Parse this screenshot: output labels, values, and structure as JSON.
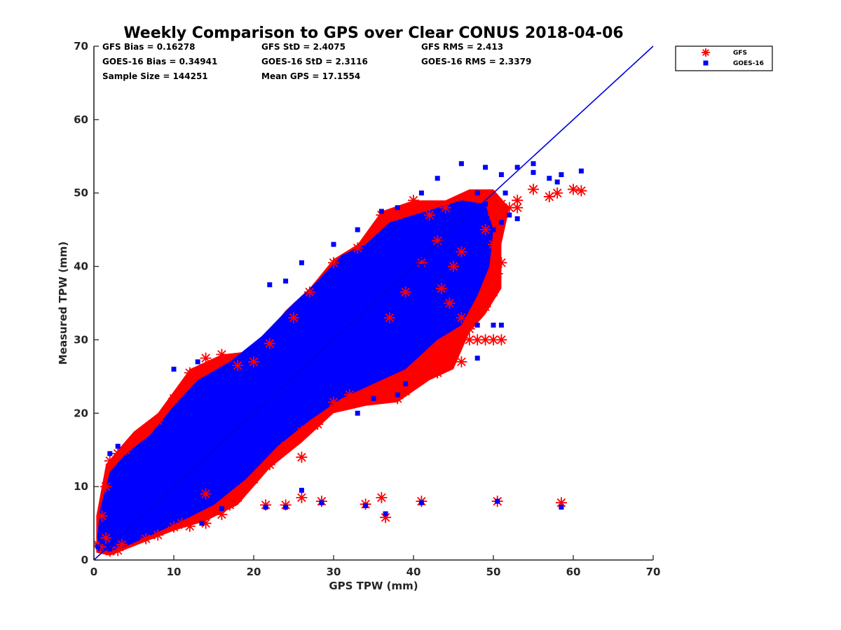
{
  "chart_data": {
    "type": "scatter",
    "title": "Weekly Comparison to GPS over Clear CONUS 2018-04-06",
    "xlabel": "GPS TPW (mm)",
    "ylabel": "Measured TPW (mm)",
    "xlim": [
      0,
      70
    ],
    "ylim": [
      0,
      70
    ],
    "xticks": [
      "0",
      "10",
      "20",
      "30",
      "40",
      "50",
      "60",
      "70"
    ],
    "yticks": [
      "0",
      "10",
      "20",
      "30",
      "40",
      "50",
      "60",
      "70"
    ],
    "grid": false,
    "legend_position": "outside-top-right",
    "one_to_one_line": {
      "from": [
        0,
        0
      ],
      "to": [
        70,
        70
      ],
      "color": "#0000dd"
    },
    "statistics": [
      [
        "GFS Bias = 0.16278",
        "GFS StD = 2.4075",
        "GFS RMS = 2.413"
      ],
      [
        "GOES-16 Bias = 0.34941",
        "GOES-16 StD = 2.3116",
        "GOES-16 RMS = 2.3379"
      ],
      [
        "Sample Size = 144251",
        "Mean GPS = 17.1554"
      ]
    ],
    "sample_size": 144251,
    "series": [
      {
        "name": "GFS",
        "marker": "asterisk",
        "color": "#ff0000",
        "points": [
          [
            0.4,
            2.2
          ],
          [
            0.8,
            1.8
          ],
          [
            1.5,
            3.0
          ],
          [
            2.0,
            1.2
          ],
          [
            3.0,
            1.3
          ],
          [
            3.5,
            2.1
          ],
          [
            6.5,
            2.9
          ],
          [
            8.0,
            3.4
          ],
          [
            10.0,
            4.5
          ],
          [
            11.0,
            5.0
          ],
          [
            12.0,
            4.6
          ],
          [
            14.0,
            5.0
          ],
          [
            16.0,
            6.2
          ],
          [
            17.0,
            7.5
          ],
          [
            18.0,
            8.5
          ],
          [
            20.0,
            11.0
          ],
          [
            22.0,
            13.0
          ],
          [
            24.0,
            15.5
          ],
          [
            26.0,
            17.5
          ],
          [
            28.0,
            18.5
          ],
          [
            30.0,
            21.5
          ],
          [
            32.0,
            22.5
          ],
          [
            34.0,
            22.0
          ],
          [
            36.0,
            22.5
          ],
          [
            38.0,
            22.0
          ],
          [
            39.0,
            23.0
          ],
          [
            40.0,
            25.5
          ],
          [
            41.0,
            25.5
          ],
          [
            42.0,
            25.8
          ],
          [
            43.0,
            25.5
          ],
          [
            44.0,
            27.0
          ],
          [
            45.0,
            28.5
          ],
          [
            46.0,
            27.0
          ],
          [
            47.0,
            31.5
          ],
          [
            48.0,
            30.0
          ],
          [
            49.0,
            30.0
          ],
          [
            50.0,
            30.0
          ],
          [
            51.0,
            30.0
          ],
          [
            48.0,
            34.0
          ],
          [
            49.0,
            34.5
          ],
          [
            50.0,
            36.5
          ],
          [
            50.5,
            39.0
          ],
          [
            51.0,
            40.5
          ],
          [
            50.0,
            43.0
          ],
          [
            49.0,
            45.0
          ],
          [
            50.0,
            47.0
          ],
          [
            51.0,
            48.5
          ],
          [
            52.0,
            48.0
          ],
          [
            53.0,
            49.0
          ],
          [
            53.0,
            48.0
          ],
          [
            55.0,
            50.5
          ],
          [
            57.0,
            49.5
          ],
          [
            58.0,
            50.0
          ],
          [
            60.0,
            50.5
          ],
          [
            61.0,
            50.3
          ],
          [
            44.0,
            48.0
          ],
          [
            42.0,
            47.0
          ],
          [
            40.0,
            49.0
          ],
          [
            38.0,
            47.0
          ],
          [
            36.0,
            47.0
          ],
          [
            33.0,
            42.5
          ],
          [
            30.0,
            40.5
          ],
          [
            27.0,
            36.5
          ],
          [
            25.0,
            33.0
          ],
          [
            22.0,
            29.5
          ],
          [
            20.0,
            27.0
          ],
          [
            18.0,
            26.5
          ],
          [
            16.0,
            28.0
          ],
          [
            14.0,
            27.5
          ],
          [
            12.0,
            25.5
          ],
          [
            10.0,
            22.0
          ],
          [
            8.0,
            19.0
          ],
          [
            6.0,
            17.0
          ],
          [
            4.0,
            15.0
          ],
          [
            3.0,
            14.5
          ],
          [
            2.0,
            13.5
          ],
          [
            1.5,
            10.0
          ],
          [
            1.0,
            6.0
          ],
          [
            26.0,
            14.0
          ],
          [
            14.0,
            9.0
          ],
          [
            21.5,
            7.5
          ],
          [
            24.0,
            7.5
          ],
          [
            26.0,
            8.5
          ],
          [
            28.5,
            8.0
          ],
          [
            34.0,
            7.6
          ],
          [
            36.0,
            8.5
          ],
          [
            36.5,
            5.8
          ],
          [
            41.0,
            8.0
          ],
          [
            50.5,
            8.0
          ],
          [
            58.5,
            7.8
          ],
          [
            43.5,
            37.0
          ],
          [
            44.5,
            35.0
          ],
          [
            46.0,
            33.0
          ],
          [
            47.0,
            30.0
          ],
          [
            45.0,
            40.0
          ],
          [
            46.0,
            42.0
          ],
          [
            43.0,
            43.5
          ],
          [
            41.0,
            40.5
          ],
          [
            39.0,
            36.5
          ],
          [
            37.0,
            33.0
          ]
        ]
      },
      {
        "name": "GOES-16",
        "marker": "square",
        "color": "#0000ff",
        "points": [
          [
            0.5,
            1.8
          ],
          [
            1.0,
            2.5
          ],
          [
            2.0,
            1.5
          ],
          [
            3.0,
            3.5
          ],
          [
            4.0,
            3.0
          ],
          [
            5.0,
            5.5
          ],
          [
            6.0,
            5.0
          ],
          [
            7.0,
            7.5
          ],
          [
            8.0,
            8.0
          ],
          [
            9.0,
            9.5
          ],
          [
            10.0,
            12.0
          ],
          [
            11.0,
            10.5
          ],
          [
            12.0,
            13.0
          ],
          [
            13.0,
            14.0
          ],
          [
            14.0,
            15.0
          ],
          [
            15.0,
            17.5
          ],
          [
            16.0,
            16.0
          ],
          [
            17.0,
            18.0
          ],
          [
            18.0,
            20.5
          ],
          [
            19.0,
            19.0
          ],
          [
            20.0,
            22.0
          ],
          [
            21.0,
            21.0
          ],
          [
            22.0,
            24.5
          ],
          [
            23.0,
            23.0
          ],
          [
            24.0,
            26.0
          ],
          [
            25.0,
            25.0
          ],
          [
            26.0,
            28.5
          ],
          [
            27.0,
            27.0
          ],
          [
            28.0,
            29.5
          ],
          [
            29.0,
            28.0
          ],
          [
            30.0,
            32.0
          ],
          [
            31.0,
            30.5
          ],
          [
            32.0,
            34.0
          ],
          [
            33.0,
            33.0
          ],
          [
            34.0,
            36.0
          ],
          [
            35.0,
            34.5
          ],
          [
            36.0,
            38.0
          ],
          [
            37.0,
            37.0
          ],
          [
            38.0,
            40.0
          ],
          [
            39.0,
            38.5
          ],
          [
            40.0,
            42.0
          ],
          [
            41.0,
            40.0
          ],
          [
            42.0,
            44.0
          ],
          [
            43.0,
            42.0
          ],
          [
            44.0,
            46.0
          ],
          [
            45.0,
            44.5
          ],
          [
            46.0,
            48.0
          ],
          [
            47.0,
            46.0
          ],
          [
            48.0,
            50.0
          ],
          [
            49.0,
            48.5
          ],
          [
            22.0,
            37.5
          ],
          [
            24.0,
            38.0
          ],
          [
            26.0,
            40.5
          ],
          [
            30.0,
            43.0
          ],
          [
            33.0,
            45.0
          ],
          [
            36.0,
            47.5
          ],
          [
            38.0,
            48.0
          ],
          [
            41.0,
            50.0
          ],
          [
            43.0,
            52.0
          ],
          [
            46.0,
            54.0
          ],
          [
            49.0,
            53.5
          ],
          [
            51.0,
            52.5
          ],
          [
            53.0,
            53.5
          ],
          [
            55.0,
            54.0
          ],
          [
            55.0,
            52.8
          ],
          [
            57.0,
            52.0
          ],
          [
            58.0,
            51.5
          ],
          [
            58.5,
            52.5
          ],
          [
            61.0,
            53.0
          ],
          [
            51.5,
            50.0
          ],
          [
            50.0,
            45.0
          ],
          [
            51.0,
            46.0
          ],
          [
            52.0,
            47.0
          ],
          [
            53.0,
            46.5
          ],
          [
            48.0,
            32.0
          ],
          [
            50.0,
            32.0
          ],
          [
            51.0,
            32.0
          ],
          [
            48.0,
            27.5
          ],
          [
            39.0,
            24.0
          ],
          [
            33.0,
            20.0
          ],
          [
            38.0,
            22.5
          ],
          [
            35.0,
            22.0
          ],
          [
            20.0,
            14.0
          ],
          [
            21.5,
            7.2
          ],
          [
            24.0,
            7.2
          ],
          [
            26.0,
            9.5
          ],
          [
            28.5,
            7.8
          ],
          [
            34.0,
            7.4
          ],
          [
            36.5,
            6.3
          ],
          [
            41.0,
            7.8
          ],
          [
            50.5,
            8.0
          ],
          [
            58.5,
            7.2
          ],
          [
            10.0,
            26.0
          ],
          [
            13.0,
            27.0
          ],
          [
            16.0,
            26.0
          ],
          [
            2.0,
            14.5
          ],
          [
            3.0,
            15.5
          ],
          [
            1.5,
            8.5
          ],
          [
            13.5,
            5.0
          ],
          [
            16.0,
            7.0
          ]
        ]
      }
    ]
  }
}
